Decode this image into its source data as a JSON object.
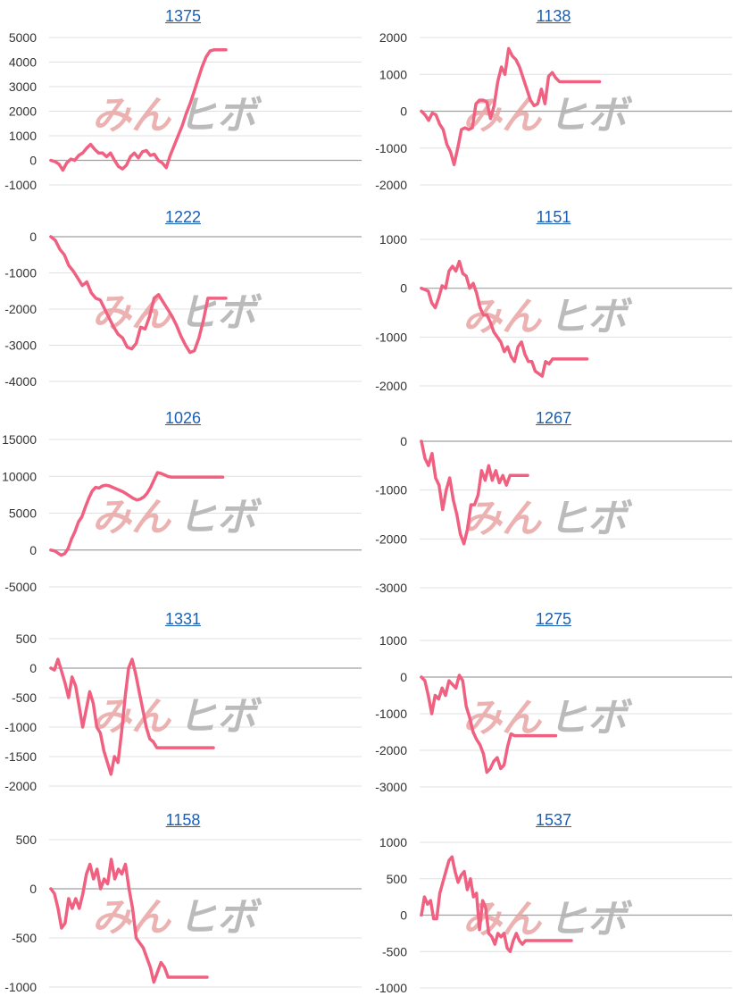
{
  "chart_data": [
    {
      "type": "line",
      "title": "1375",
      "ylim": [
        -1000,
        5000
      ],
      "yticks": [
        5000,
        4000,
        3000,
        2000,
        1000,
        0,
        -1000
      ],
      "x": [
        0,
        1,
        2,
        3,
        4,
        5,
        6,
        7,
        8,
        9,
        10,
        11,
        12,
        13,
        14,
        15,
        16,
        17,
        18,
        19,
        20,
        21,
        22,
        23,
        24,
        25,
        26,
        27,
        28,
        29,
        30,
        31,
        32,
        33,
        34,
        35,
        36,
        37,
        38,
        39,
        40,
        41,
        42,
        43,
        44
      ],
      "series": [
        {
          "values": [
            0,
            -50,
            -150,
            -400,
            -100,
            50,
            0,
            200,
            300,
            500,
            650,
            450,
            300,
            300,
            150,
            300,
            0,
            -250,
            -350,
            -200,
            150,
            300,
            100,
            350,
            400,
            200,
            250,
            0,
            -100,
            -300,
            200,
            600,
            1000,
            1400,
            1900,
            2300,
            2800,
            3300,
            3800,
            4200,
            4450,
            4500,
            4500,
            4500,
            4500
          ]
        }
      ]
    },
    {
      "type": "line",
      "title": "1138",
      "ylim": [
        -2000,
        2000
      ],
      "yticks": [
        2000,
        1000,
        0,
        -1000,
        -2000
      ],
      "x": [
        0,
        1,
        2,
        3,
        4,
        5,
        6,
        7,
        8,
        9,
        10,
        11,
        12,
        13,
        14,
        15,
        16,
        17,
        18,
        19,
        20,
        21,
        22,
        23,
        24,
        25,
        26,
        27,
        28,
        29,
        30,
        31,
        32,
        33,
        34,
        35,
        36,
        37,
        38,
        39,
        40,
        41,
        42,
        43,
        44,
        45,
        46,
        47,
        48,
        49
      ],
      "series": [
        {
          "values": [
            0,
            -100,
            -250,
            -50,
            -100,
            -350,
            -500,
            -900,
            -1100,
            -1450,
            -1000,
            -500,
            -450,
            -500,
            -450,
            200,
            300,
            300,
            250,
            -200,
            150,
            800,
            1200,
            1000,
            1700,
            1500,
            1400,
            1200,
            900,
            600,
            300,
            150,
            200,
            600,
            200,
            950,
            1050,
            900,
            800,
            800,
            800,
            800,
            800,
            800,
            800,
            800,
            800,
            800,
            800,
            800
          ]
        }
      ]
    },
    {
      "type": "line",
      "title": "1222",
      "ylim": [
        -4000,
        0
      ],
      "yticks": [
        0,
        -1000,
        -2000,
        -3000,
        -4000
      ],
      "x": [
        0,
        1,
        2,
        3,
        4,
        5,
        6,
        7,
        8,
        9,
        10,
        11,
        12,
        13,
        14,
        15,
        16,
        17,
        18,
        19,
        20,
        21,
        22,
        23,
        24,
        25,
        26,
        27,
        28,
        29,
        30,
        31,
        32,
        33,
        34,
        35,
        36,
        37,
        38,
        39
      ],
      "series": [
        {
          "values": [
            0,
            -100,
            -350,
            -500,
            -800,
            -950,
            -1150,
            -1350,
            -1250,
            -1550,
            -1700,
            -1750,
            -2000,
            -2250,
            -2500,
            -2700,
            -2800,
            -3050,
            -3100,
            -2950,
            -2500,
            -2550,
            -2200,
            -1700,
            -1600,
            -1800,
            -2000,
            -2200,
            -2450,
            -2750,
            -3000,
            -3200,
            -3150,
            -2800,
            -2300,
            -1700,
            -1700,
            -1700,
            -1700,
            -1700
          ]
        }
      ]
    },
    {
      "type": "line",
      "title": "1151",
      "ylim": [
        -2000,
        1000
      ],
      "yticks": [
        1000,
        0,
        -1000,
        -2000
      ],
      "x": [
        0,
        1,
        2,
        3,
        4,
        5,
        6,
        7,
        8,
        9,
        10,
        11,
        12,
        13,
        14,
        15,
        16,
        17,
        18,
        19,
        20,
        21,
        22,
        23,
        24,
        25,
        26,
        27,
        28,
        29,
        30,
        31,
        32,
        33,
        34,
        35,
        36,
        37,
        38,
        39,
        40,
        41,
        42,
        43,
        44,
        45,
        46,
        47,
        48
      ],
      "series": [
        {
          "values": [
            0,
            -30,
            -60,
            -300,
            -400,
            -200,
            50,
            0,
            350,
            450,
            350,
            550,
            300,
            250,
            0,
            100,
            -100,
            -400,
            -550,
            -550,
            -700,
            -900,
            -1000,
            -1100,
            -1300,
            -1200,
            -1400,
            -1500,
            -1200,
            -1100,
            -1350,
            -1500,
            -1500,
            -1700,
            -1750,
            -1800,
            -1500,
            -1550,
            -1450,
            -1450,
            -1450,
            -1450,
            -1450,
            -1450,
            -1450,
            -1450,
            -1450,
            -1450,
            -1450
          ]
        }
      ]
    },
    {
      "type": "line",
      "title": "1026",
      "ylim": [
        -5000,
        15000
      ],
      "yticks": [
        15000,
        10000,
        5000,
        0,
        -5000
      ],
      "x": [
        0,
        1,
        2,
        3,
        4,
        5,
        6,
        7,
        8,
        9,
        10,
        11,
        12,
        13,
        14,
        15,
        16,
        17,
        18,
        19,
        20,
        21,
        22,
        23,
        24,
        25,
        26,
        27,
        28,
        29,
        30,
        31,
        32,
        33,
        34,
        35,
        36,
        37,
        38,
        39,
        40,
        41,
        42,
        43,
        44,
        45,
        46,
        47,
        48,
        49,
        50
      ],
      "series": [
        {
          "values": [
            0,
            -100,
            -400,
            -700,
            -500,
            200,
            1500,
            2500,
            3800,
            4500,
            5800,
            7000,
            8000,
            8500,
            8400,
            8700,
            8800,
            8700,
            8500,
            8300,
            8100,
            7900,
            7600,
            7300,
            7000,
            6800,
            6900,
            7200,
            7700,
            8500,
            9500,
            10500,
            10400,
            10200,
            10000,
            9900,
            9900,
            9900,
            9900,
            9900,
            9900,
            9900,
            9900,
            9900,
            9900,
            9900,
            9900,
            9900,
            9900,
            9900,
            9900
          ]
        }
      ]
    },
    {
      "type": "line",
      "title": "1267",
      "ylim": [
        -3000,
        0
      ],
      "yticks": [
        0,
        -1000,
        -2000,
        -3000
      ],
      "x": [
        0,
        1,
        2,
        3,
        4,
        5,
        6,
        7,
        8,
        9,
        10,
        11,
        12,
        13,
        14,
        15,
        16,
        17,
        18,
        19,
        20,
        21,
        22,
        23,
        24,
        25,
        26,
        27,
        28,
        29,
        30
      ],
      "series": [
        {
          "values": [
            0,
            -350,
            -500,
            -250,
            -750,
            -900,
            -1400,
            -1000,
            -750,
            -1200,
            -1500,
            -1900,
            -2100,
            -1800,
            -1300,
            -1300,
            -1100,
            -600,
            -800,
            -500,
            -800,
            -600,
            -850,
            -700,
            -900,
            -700,
            -700,
            -700,
            -700,
            -700,
            -700
          ]
        }
      ]
    },
    {
      "type": "line",
      "title": "1331",
      "ylim": [
        -2000,
        500
      ],
      "yticks": [
        500,
        0,
        -500,
        -1000,
        -1500,
        -2000
      ],
      "x": [
        0,
        1,
        2,
        3,
        4,
        5,
        6,
        7,
        8,
        9,
        10,
        11,
        12,
        13,
        14,
        15,
        16,
        17,
        18,
        19,
        20,
        21,
        22,
        23,
        24,
        25,
        26,
        27,
        28,
        29,
        30,
        31,
        32,
        33,
        34,
        35,
        36,
        37,
        38,
        39,
        40,
        41,
        42,
        43,
        44,
        45,
        46
      ],
      "series": [
        {
          "values": [
            0,
            -30,
            150,
            -50,
            -250,
            -500,
            -150,
            -300,
            -650,
            -1000,
            -700,
            -400,
            -600,
            -1000,
            -1100,
            -1400,
            -1600,
            -1800,
            -1500,
            -1600,
            -1100,
            -500,
            0,
            150,
            -100,
            -400,
            -700,
            -1000,
            -1200,
            -1250,
            -1350,
            -1350,
            -1350,
            -1350,
            -1350,
            -1350,
            -1350,
            -1350,
            -1350,
            -1350,
            -1350,
            -1350,
            -1350,
            -1350,
            -1350,
            -1350,
            -1350
          ]
        }
      ]
    },
    {
      "type": "line",
      "title": "1275",
      "ylim": [
        -3000,
        1000
      ],
      "yticks": [
        1000,
        0,
        -1000,
        -2000,
        -3000
      ],
      "x": [
        0,
        1,
        2,
        3,
        4,
        5,
        6,
        7,
        8,
        9,
        10,
        11,
        12,
        13,
        14,
        15,
        16,
        17,
        18,
        19,
        20,
        21,
        22,
        23,
        24,
        25,
        26,
        27,
        28,
        29,
        30,
        31,
        32,
        33,
        34,
        35,
        36,
        37,
        38,
        39
      ],
      "series": [
        {
          "values": [
            0,
            -100,
            -500,
            -1000,
            -500,
            -600,
            -300,
            -500,
            -100,
            -200,
            -300,
            50,
            -100,
            -800,
            -1100,
            -1500,
            -1700,
            -1850,
            -2100,
            -2600,
            -2500,
            -2300,
            -2200,
            -2500,
            -2400,
            -1900,
            -1550,
            -1600,
            -1600,
            -1600,
            -1600,
            -1600,
            -1600,
            -1600,
            -1600,
            -1600,
            -1600,
            -1600,
            -1600,
            -1600
          ]
        }
      ]
    },
    {
      "type": "line",
      "title": "1158",
      "ylim": [
        -1000,
        500
      ],
      "yticks": [
        500,
        0,
        -500,
        -1000
      ],
      "x": [
        0,
        1,
        2,
        3,
        4,
        5,
        6,
        7,
        8,
        9,
        10,
        11,
        12,
        13,
        14,
        15,
        16,
        17,
        18,
        19,
        20,
        21,
        22,
        23,
        24,
        25,
        26,
        27,
        28,
        29,
        30,
        31,
        32,
        33,
        34,
        35,
        36,
        37,
        38,
        39,
        40,
        41,
        42,
        43,
        44
      ],
      "series": [
        {
          "values": [
            0,
            -50,
            -200,
            -400,
            -350,
            -100,
            -200,
            -100,
            -200,
            -50,
            150,
            250,
            100,
            200,
            0,
            100,
            50,
            300,
            100,
            200,
            150,
            250,
            0,
            -200,
            -500,
            -550,
            -600,
            -700,
            -800,
            -950,
            -850,
            -750,
            -800,
            -900,
            -900,
            -900,
            -900,
            -900,
            -900,
            -900,
            -900,
            -900,
            -900,
            -900,
            -900
          ]
        }
      ]
    },
    {
      "type": "line",
      "title": "1537",
      "ylim": [
        -1000,
        1000
      ],
      "yticks": [
        1000,
        500,
        0,
        -500,
        -1000
      ],
      "x": [
        0,
        1,
        2,
        3,
        4,
        5,
        6,
        7,
        8,
        9,
        10,
        11,
        12,
        13,
        14,
        15,
        16,
        17,
        18,
        19,
        20,
        21,
        22,
        23,
        24,
        25,
        26,
        27,
        28,
        29,
        30,
        31,
        32,
        33,
        34,
        35,
        36,
        37,
        38,
        39,
        40,
        41,
        42,
        43,
        44,
        45,
        46,
        47,
        48,
        49
      ],
      "series": [
        {
          "values": [
            0,
            250,
            150,
            200,
            -50,
            -50,
            300,
            450,
            600,
            750,
            800,
            600,
            450,
            550,
            600,
            350,
            500,
            250,
            300,
            -200,
            200,
            100,
            -250,
            -300,
            -400,
            -250,
            -300,
            -250,
            -450,
            -500,
            -350,
            -250,
            -350,
            -400,
            -350,
            -350,
            -350,
            -350,
            -350,
            -350,
            -350,
            -350,
            -350,
            -350,
            -350,
            -350,
            -350,
            -350,
            -350,
            -350
          ]
        }
      ]
    }
  ],
  "watermark": {
    "left_text": "みん",
    "right_text": "ヒボ"
  },
  "colors": {
    "line": "#f06080",
    "grid": "#e0e0e0",
    "zero": "#a0a0a0",
    "watermark_left": "#e8a0a0",
    "watermark_right": "#b0b0b0"
  }
}
